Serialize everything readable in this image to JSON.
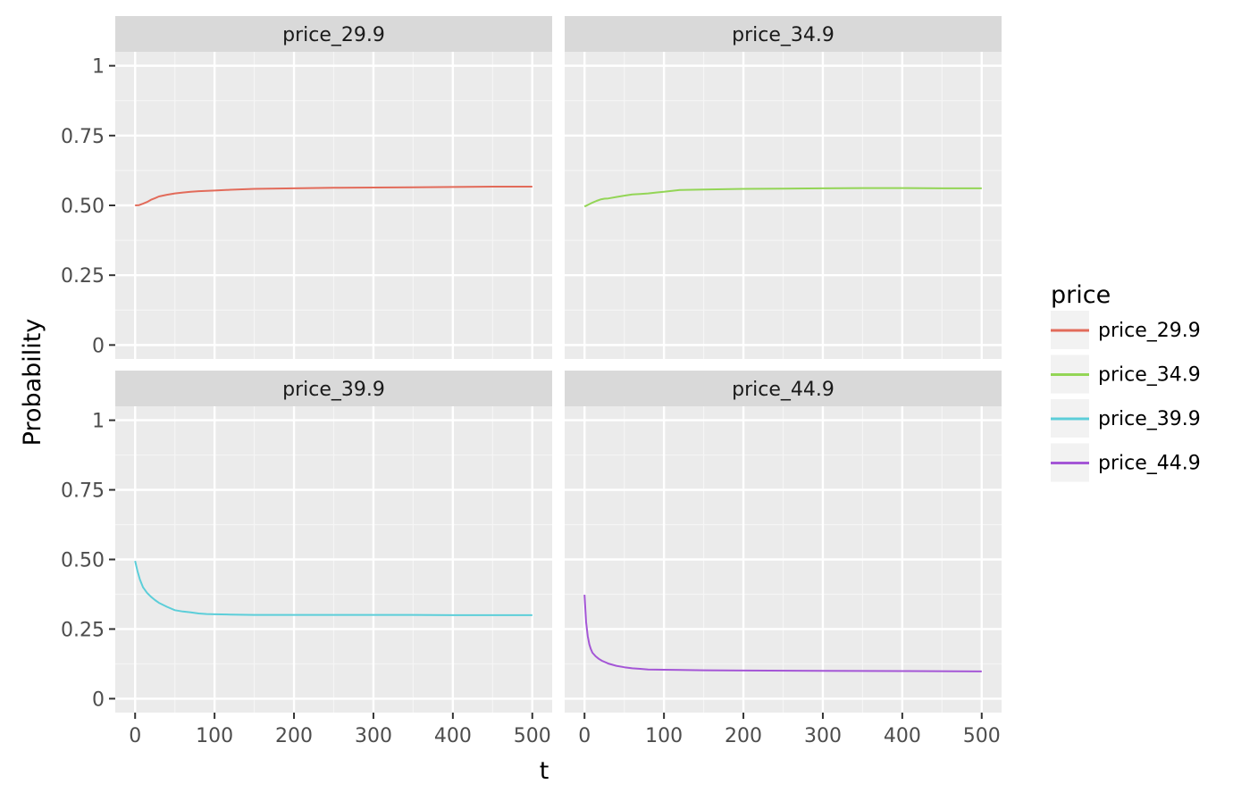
{
  "chart_data": {
    "type": "line",
    "facet_layout": "2x2",
    "x_axis": {
      "label": "t",
      "range": [
        -25,
        525
      ],
      "ticks": [
        0,
        100,
        200,
        300,
        400,
        500
      ],
      "minor_ticks": [
        50,
        150,
        250,
        350,
        450
      ]
    },
    "y_axis": {
      "label": "Probability",
      "range": [
        -0.05,
        1.05
      ],
      "ticks": [
        0,
        0.25,
        0.5,
        0.75,
        1
      ],
      "tick_labels": [
        "0",
        "0.25",
        "0.50",
        "0.75",
        "1"
      ],
      "minor_ticks": [
        0.125,
        0.375,
        0.625,
        0.875
      ]
    },
    "grid": true,
    "legend": {
      "title": "price",
      "position": "right"
    },
    "panels": [
      {
        "strip": "price_29.9",
        "color": "#E26B5A",
        "x": [
          0,
          5,
          10,
          15,
          20,
          25,
          30,
          40,
          50,
          60,
          70,
          80,
          90,
          100,
          120,
          150,
          200,
          250,
          300,
          350,
          400,
          450,
          500
        ],
        "y": [
          0.5,
          0.501,
          0.506,
          0.512,
          0.52,
          0.526,
          0.532,
          0.538,
          0.543,
          0.546,
          0.549,
          0.551,
          0.552,
          0.553,
          0.556,
          0.559,
          0.561,
          0.563,
          0.564,
          0.565,
          0.566,
          0.567,
          0.567
        ]
      },
      {
        "strip": "price_34.9",
        "color": "#93D556",
        "x": [
          0,
          5,
          10,
          15,
          20,
          25,
          30,
          40,
          50,
          60,
          70,
          80,
          90,
          100,
          110,
          120,
          150,
          200,
          250,
          300,
          350,
          400,
          450,
          500
        ],
        "y": [
          0.496,
          0.503,
          0.51,
          0.516,
          0.521,
          0.524,
          0.525,
          0.53,
          0.535,
          0.539,
          0.541,
          0.543,
          0.546,
          0.549,
          0.552,
          0.555,
          0.557,
          0.559,
          0.56,
          0.561,
          0.562,
          0.562,
          0.561,
          0.561
        ]
      },
      {
        "strip": "price_39.9",
        "color": "#5CCED9",
        "x": [
          0,
          3,
          6,
          10,
          15,
          20,
          25,
          30,
          40,
          50,
          60,
          70,
          80,
          90,
          100,
          120,
          150,
          200,
          250,
          300,
          350,
          400,
          450,
          500
        ],
        "y": [
          0.495,
          0.458,
          0.428,
          0.4,
          0.38,
          0.366,
          0.354,
          0.344,
          0.33,
          0.318,
          0.313,
          0.31,
          0.306,
          0.304,
          0.303,
          0.302,
          0.301,
          0.301,
          0.301,
          0.301,
          0.301,
          0.3,
          0.3,
          0.3
        ]
      },
      {
        "strip": "price_44.9",
        "color": "#A456D6",
        "x": [
          0,
          2,
          4,
          6,
          8,
          10,
          14,
          18,
          22,
          30,
          40,
          50,
          60,
          70,
          80,
          100,
          150,
          200,
          300,
          400,
          500
        ],
        "y": [
          0.373,
          0.275,
          0.225,
          0.195,
          0.178,
          0.165,
          0.152,
          0.143,
          0.136,
          0.126,
          0.118,
          0.113,
          0.109,
          0.107,
          0.105,
          0.104,
          0.102,
          0.101,
          0.1,
          0.099,
          0.098
        ]
      }
    ]
  }
}
